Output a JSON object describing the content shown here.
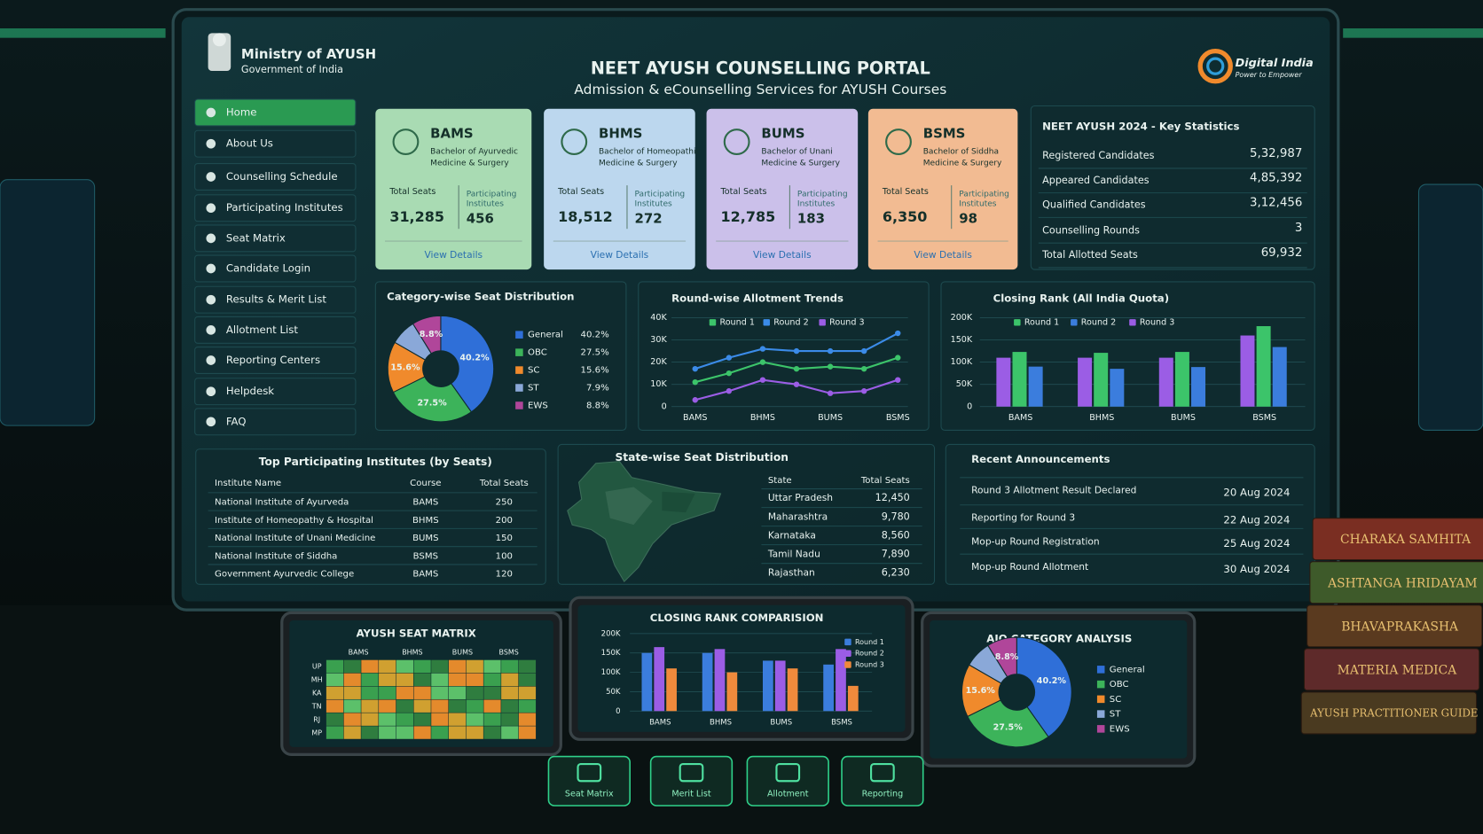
{
  "header": {
    "ministry": "Ministry of AYUSH",
    "government": "Government of India",
    "title": "NEET AYUSH COUNSELLING PORTAL",
    "subtitle": "Admission & eCounselling Services for AYUSH Courses",
    "brand": "Digital India",
    "tagline": "Power to Empower"
  },
  "nav": [
    "Home",
    "About Us",
    "Counselling Schedule",
    "Participating Institutes",
    "Seat Matrix",
    "Candidate Login",
    "Results & Merit List",
    "Allotment List",
    "Reporting Centers",
    "Helpdesk",
    "FAQ"
  ],
  "courses": [
    {
      "code": "BAMS",
      "name": "Bachelor of Ayurvedic Medicine & Surgery",
      "seats_label": "Total Seats",
      "seats": "31,285",
      "institutes_label": "Participating Institutes",
      "institutes": "456",
      "link": "View Details",
      "color": "#a9dbb3"
    },
    {
      "code": "BHMS",
      "name": "Bachelor of Homeopathic Medicine & Surgery",
      "seats_label": "Total Seats",
      "seats": "18,512",
      "institutes_label": "Participating Institutes",
      "institutes": "272",
      "link": "View Details",
      "color": "#bcd7ee"
    },
    {
      "code": "BUMS",
      "name": "Bachelor of Unani Medicine & Surgery",
      "seats_label": "Total Seats",
      "seats": "12,785",
      "institutes_label": "Participating Institutes",
      "institutes": "183",
      "link": "View Details",
      "color": "#cbc0ea"
    },
    {
      "code": "BSMS",
      "name": "Bachelor of Siddha Medicine & Surgery",
      "seats_label": "Total Seats",
      "seats": "6,350",
      "institutes_label": "Participating Institutes",
      "institutes": "98",
      "link": "View Details",
      "color": "#f2bb92"
    }
  ],
  "key_stats": {
    "title": "NEET AYUSH 2024 - Key Statistics",
    "rows": [
      [
        "Registered Candidates",
        "5,32,987"
      ],
      [
        "Appeared Candidates",
        "4,85,392"
      ],
      [
        "Qualified Candidates",
        "3,12,456"
      ],
      [
        "Counselling Rounds",
        "3"
      ],
      [
        "Total Allotted Seats",
        "69,932"
      ]
    ]
  },
  "category_chart": {
    "type": "pie",
    "title": "Category-wise Seat Distribution",
    "categories": [
      "General",
      "OBC",
      "SC",
      "ST",
      "EWS"
    ],
    "values": [
      40.2,
      27.5,
      15.6,
      7.9,
      8.8
    ],
    "value_labels": [
      "40.2%",
      "27.5%",
      "15.6%",
      "7.9%",
      "8.8%"
    ],
    "colors": [
      "#2f6fd8",
      "#3cb35a",
      "#f08a2c",
      "#8aa8d8",
      "#b0469a"
    ]
  },
  "allotment_trends": {
    "type": "line",
    "title": "Round-wise Allotment Trends",
    "x": [
      0,
      0.5,
      1,
      1.5,
      2,
      2.5,
      3
    ],
    "xlim": [
      -0.35,
      3.15
    ],
    "xticks": [
      {
        "value": 0,
        "label": "BAMS"
      },
      {
        "value": 1,
        "label": "BHMS"
      },
      {
        "value": 2,
        "label": "BUMS"
      },
      {
        "value": 3,
        "label": "BSMS"
      }
    ],
    "ylim": [
      0,
      40000
    ],
    "yticks": [
      0,
      {
        "value": 10000,
        "label": "10K"
      },
      {
        "value": 20000,
        "label": "20K"
      },
      {
        "value": 30000,
        "label": "30K"
      },
      {
        "value": 40000,
        "label": "40K"
      }
    ],
    "series": [
      {
        "name": "Round 1",
        "color": "#3cc46a",
        "values": [
          11000,
          15000,
          20000,
          17000,
          18000,
          17000,
          22000
        ]
      },
      {
        "name": "Round 2",
        "color": "#3b8be8",
        "values": [
          17000,
          22000,
          26000,
          25000,
          25000,
          25000,
          33000
        ]
      },
      {
        "name": "Round 3",
        "color": "#9b5de5",
        "values": [
          3000,
          7000,
          12000,
          10000,
          6000,
          7000,
          12000
        ]
      }
    ]
  },
  "closing_rank": {
    "type": "bar",
    "title": "Closing Rank (All India Quota)",
    "categories": [
      "BAMS",
      "BHMS",
      "BUMS",
      "BSMS"
    ],
    "ylim": [
      0,
      200000
    ],
    "yticks": [
      0,
      {
        "value": 50000,
        "label": "50K"
      },
      {
        "value": 100000,
        "label": "100K"
      },
      {
        "value": 150000,
        "label": "150K"
      },
      {
        "value": 200000,
        "label": "200K"
      }
    ],
    "series": [
      {
        "name": "Round 1",
        "color": "#3cc46a",
        "values": [
          123000,
          121000,
          123000,
          181000
        ]
      },
      {
        "name": "Round 2",
        "color": "#3b7ddd",
        "values": [
          90000,
          85000,
          89000,
          134000
        ]
      },
      {
        "name": "Round 3",
        "color": "#9b5de5",
        "values": [
          110000,
          110000,
          110000,
          160000
        ]
      }
    ]
  },
  "institutes": {
    "title": "Top Participating Institutes (by Seats)",
    "columns": [
      "Institute Name",
      "Course",
      "Total Seats"
    ],
    "rows": [
      [
        "National Institute of Ayurveda",
        "BAMS",
        "250"
      ],
      [
        "Institute of Homeopathy & Hospital",
        "BHMS",
        "200"
      ],
      [
        "National Institute of Unani Medicine",
        "BUMS",
        "150"
      ],
      [
        "National Institute of Siddha",
        "BSMS",
        "100"
      ],
      [
        "Government Ayurvedic College",
        "BAMS",
        "120"
      ]
    ]
  },
  "states": {
    "title": "State-wise Seat Distribution",
    "columns": [
      "State",
      "Total Seats"
    ],
    "rows": [
      [
        "Uttar Pradesh",
        "12,450"
      ],
      [
        "Maharashtra",
        "9,780"
      ],
      [
        "Karnataka",
        "8,560"
      ],
      [
        "Tamil Nadu",
        "7,890"
      ],
      [
        "Rajasthan",
        "6,230"
      ]
    ]
  },
  "announcements": {
    "title": "Recent Announcements",
    "rows": [
      [
        "Round 3 Allotment Result Declared",
        "20 Aug 2024"
      ],
      [
        "Reporting for Round 3",
        "22 Aug 2024"
      ],
      [
        "Mop-up Round Registration",
        "25 Aug 2024"
      ],
      [
        "Mop-up Round Allotment",
        "30 Aug 2024"
      ]
    ]
  },
  "seat_matrix": {
    "title": "AYUSH SEAT MATRIX",
    "columns": [
      "BAMS",
      "BHMS",
      "BUMS",
      "BSMS"
    ],
    "rows": [
      "UP",
      "MH",
      "KA",
      "TN",
      "RJ",
      "MP"
    ]
  },
  "rank_comparison": {
    "type": "bar",
    "title": "CLOSING RANK COMPARISION",
    "categories": [
      "BAMS",
      "BHMS",
      "BUMS",
      "BSMS"
    ],
    "ylim": [
      0,
      200000
    ],
    "yticks": [
      0,
      {
        "value": 50000,
        "label": "50K"
      },
      {
        "value": 100000,
        "label": "100K"
      },
      {
        "value": 150000,
        "label": "150K"
      },
      {
        "value": 200000,
        "label": "200K"
      }
    ],
    "series": [
      {
        "name": "Round 1",
        "color": "#3b7ddd",
        "values": [
          150000,
          150000,
          130000,
          120000
        ]
      },
      {
        "name": "Round 2",
        "color": "#9b5de5",
        "values": [
          165000,
          160000,
          130000,
          160000
        ]
      },
      {
        "name": "Round 3",
        "color": "#f08a3c",
        "values": [
          110000,
          100000,
          110000,
          65000
        ]
      }
    ]
  },
  "aiq_chart": {
    "type": "pie",
    "title": "AIQ CATEGORY ANALYSIS",
    "categories": [
      "General",
      "OBC",
      "SC",
      "ST",
      "EWS"
    ],
    "values": [
      40.2,
      27.5,
      15.6,
      7.9,
      8.8
    ],
    "value_labels": [
      "40.2%",
      "27.5%",
      "15.6%",
      "7.9%",
      "8.8%"
    ],
    "colors": [
      "#2f6fd8",
      "#3cb35a",
      "#f08a2c",
      "#8aa8d8",
      "#b0469a"
    ]
  },
  "buttons": [
    "Seat Matrix",
    "Merit List",
    "Allotment",
    "Reporting"
  ],
  "books": [
    "CHARAKA SAMHITA",
    "ASHTANGA HRIDAYAM",
    "BHAVAPRAKASHA",
    "MATERIA MEDICA",
    "AYUSH PRACTITIONER GUIDE"
  ]
}
